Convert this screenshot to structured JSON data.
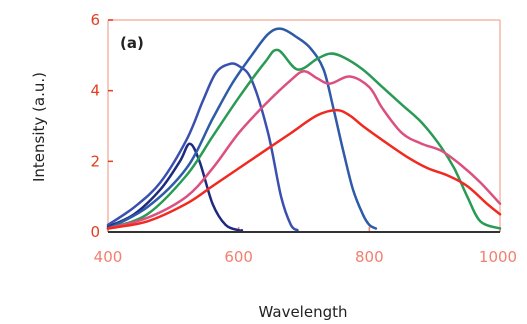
{
  "chart_data": {
    "type": "line",
    "annotation": "(a)",
    "xlabel": "Wavelength",
    "ylabel": "Intensity (a.u.)",
    "xlim": [
      400,
      1000
    ],
    "ylim": [
      0,
      6
    ],
    "x_ticks": [
      400,
      600,
      800,
      1000
    ],
    "x_tick_labels": [
      "400",
      "600",
      "800",
      "1000"
    ],
    "y_ticks": [
      0,
      2,
      4,
      6
    ],
    "y_tick_labels": [
      "0",
      "2",
      "4",
      "6"
    ],
    "grid": false,
    "legend": "none",
    "colors": {
      "tick_x": "#f08070",
      "tick_y": "#e04020",
      "frame": "#f5b5a5",
      "baseline": "#333333"
    },
    "series": [
      {
        "color": "#1e2a80",
        "x": [
          400,
          440,
          480,
          510,
          525,
          540,
          560,
          580,
          600,
          605
        ],
        "y": [
          0.15,
          0.5,
          1.2,
          2.0,
          2.5,
          2.0,
          0.8,
          0.2,
          0.05,
          0.05
        ]
      },
      {
        "color": "#3a50b0",
        "x": [
          400,
          440,
          480,
          520,
          545,
          565,
          585,
          600,
          620,
          645,
          665,
          680,
          690
        ],
        "y": [
          0.2,
          0.7,
          1.4,
          2.6,
          3.7,
          4.5,
          4.75,
          4.7,
          4.3,
          2.8,
          1.0,
          0.2,
          0.05
        ]
      },
      {
        "color": "#2e5aa8",
        "x": [
          400,
          460,
          520,
          560,
          590,
          620,
          645,
          665,
          690,
          710,
          730,
          745,
          760,
          775,
          790,
          800,
          810
        ],
        "y": [
          0.1,
          0.7,
          1.8,
          3.2,
          4.2,
          5.0,
          5.6,
          5.75,
          5.5,
          5.2,
          4.6,
          3.5,
          2.3,
          1.2,
          0.5,
          0.2,
          0.1
        ]
      },
      {
        "color": "#2a9a55",
        "x": [
          400,
          460,
          520,
          560,
          600,
          640,
          660,
          690,
          720,
          740,
          760,
          790,
          820,
          850,
          880,
          910,
          930,
          950,
          970,
          1000
        ],
        "y": [
          0.1,
          0.5,
          1.6,
          2.7,
          3.8,
          4.8,
          5.15,
          4.6,
          4.9,
          5.05,
          4.95,
          4.6,
          4.1,
          3.6,
          3.1,
          2.4,
          1.8,
          1.0,
          0.3,
          0.1
        ]
      },
      {
        "color": "#dc5080",
        "x": [
          400,
          460,
          520,
          560,
          600,
          640,
          680,
          700,
          720,
          740,
          770,
          800,
          820,
          850,
          880,
          910,
          940,
          970,
          1000
        ],
        "y": [
          0.1,
          0.4,
          1.0,
          1.8,
          2.8,
          3.6,
          4.3,
          4.55,
          4.35,
          4.2,
          4.4,
          4.1,
          3.5,
          2.8,
          2.5,
          2.3,
          1.9,
          1.4,
          0.8
        ]
      },
      {
        "color": "#f02a20",
        "x": [
          400,
          460,
          520,
          560,
          600,
          640,
          680,
          720,
          750,
          770,
          790,
          820,
          860,
          890,
          920,
          950,
          980,
          1000
        ],
        "y": [
          0.1,
          0.3,
          0.8,
          1.3,
          1.8,
          2.3,
          2.8,
          3.3,
          3.45,
          3.3,
          3.0,
          2.6,
          2.1,
          1.8,
          1.6,
          1.3,
          0.8,
          0.5
        ]
      }
    ]
  }
}
